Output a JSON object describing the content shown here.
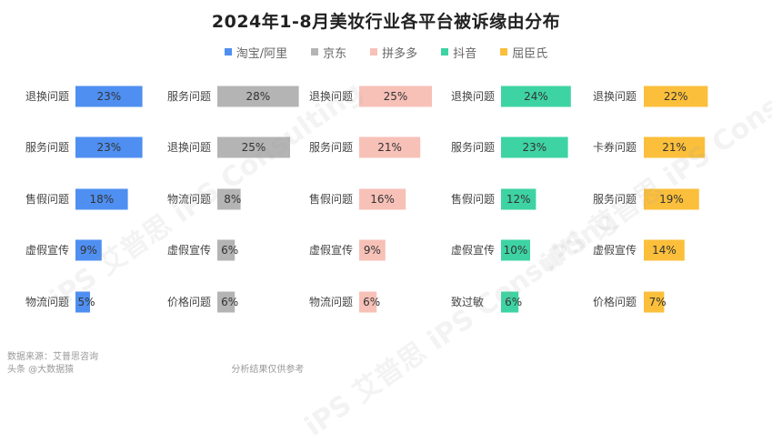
{
  "title": "2024年1-8月美妆行业各平台被诉缘由分布",
  "footer": {
    "source": "数据来源：艾普思咨询",
    "note": "分析结果仅供参考",
    "overlay": "头条 @大数据猿"
  },
  "watermark": "iPS 艾普思 iPS Consulting",
  "chart_data": {
    "type": "bar",
    "unit": "%",
    "series": [
      {
        "name": "淘宝/阿里",
        "color": "#4f8ff1",
        "categories": [
          "退换问题",
          "服务问题",
          "售假问题",
          "虚假宣传",
          "物流问题"
        ],
        "values": [
          23,
          23,
          18,
          9,
          5
        ]
      },
      {
        "name": "京东",
        "color": "#b4b4b4",
        "categories": [
          "服务问题",
          "退换问题",
          "物流问题",
          "虚假宣传",
          "价格问题"
        ],
        "values": [
          28,
          25,
          8,
          6,
          6
        ]
      },
      {
        "name": "拼多多",
        "color": "#f7c1b8",
        "categories": [
          "退换问题",
          "服务问题",
          "售假问题",
          "虚假宣传",
          "物流问题"
        ],
        "values": [
          25,
          21,
          16,
          9,
          6
        ]
      },
      {
        "name": "抖音",
        "color": "#3ed3a3",
        "categories": [
          "退换问题",
          "服务问题",
          "售假问题",
          "虚假宣传",
          "致过敏"
        ],
        "values": [
          24,
          23,
          12,
          10,
          6
        ]
      },
      {
        "name": "屈臣氏",
        "color": "#fbbf3b",
        "categories": [
          "退换问题",
          "卡券问题",
          "服务问题",
          "虚假宣传",
          "价格问题"
        ],
        "values": [
          22,
          21,
          19,
          14,
          7
        ]
      }
    ]
  }
}
